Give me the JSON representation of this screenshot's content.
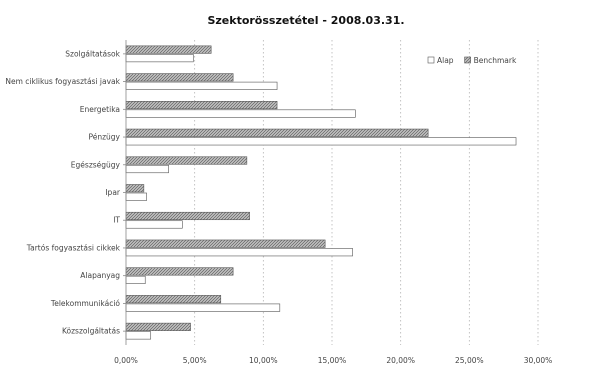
{
  "chart_data": {
    "type": "bar",
    "orientation": "horizontal",
    "title": "Szektorösszetétel - 2008.03.31.",
    "categories": [
      "Szolgáltatások",
      "Nem ciklikus fogyasztási javak",
      "Energetika",
      "Pénzügy",
      "Egészségügy",
      "Ipar",
      "IT",
      "Tartós fogyasztási cikkek",
      "Alapanyag",
      "Telekommunikáció",
      "Közszolgáltatás"
    ],
    "series": [
      {
        "name": "Benchmark",
        "pattern": "hatched",
        "color": "#8c8c8c",
        "values": [
          6.2,
          7.8,
          11.0,
          22.0,
          8.8,
          1.3,
          9.0,
          14.5,
          7.8,
          6.9,
          4.7
        ]
      },
      {
        "name": "Alap",
        "pattern": "empty",
        "color": "#ffffff",
        "values": [
          4.9,
          11.0,
          16.7,
          28.4,
          3.1,
          1.5,
          4.1,
          16.5,
          1.4,
          11.2,
          1.8
        ]
      }
    ],
    "legend_order": [
      "Alap",
      "Benchmark"
    ],
    "xlim": [
      0,
      30
    ],
    "xticks": [
      "0,00%",
      "5,00%",
      "10,00%",
      "15,00%",
      "20,00%",
      "25,00%",
      "30,00%"
    ],
    "grid": "vertical dashed",
    "legend_position": "top-right"
  }
}
